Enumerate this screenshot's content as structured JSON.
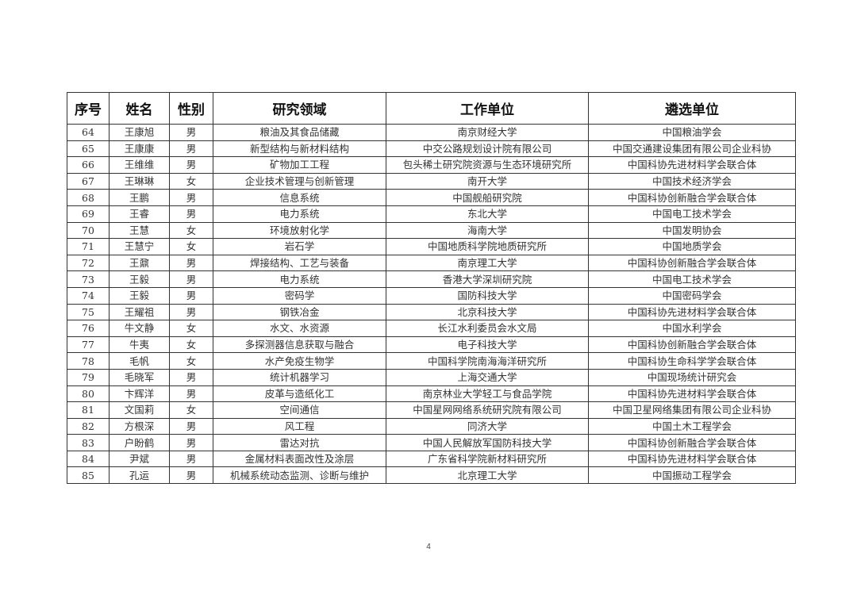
{
  "table": {
    "headers": [
      "序号",
      "姓名",
      "性别",
      "研究领域",
      "工作单位",
      "遴选单位"
    ],
    "rows": [
      [
        "64",
        "王康旭",
        "男",
        "粮油及其食品储藏",
        "南京财经大学",
        "中国粮油学会"
      ],
      [
        "65",
        "王康康",
        "男",
        "新型结构与新材料结构",
        "中交公路规划设计院有限公司",
        "中国交通建设集团有限公司企业科协"
      ],
      [
        "66",
        "王维维",
        "男",
        "矿物加工工程",
        "包头稀土研究院资源与生态环境研究所",
        "中国科协先进材料学会联合体"
      ],
      [
        "67",
        "王琳琳",
        "女",
        "企业技术管理与创新管理",
        "南开大学",
        "中国技术经济学会"
      ],
      [
        "68",
        "王鹏",
        "男",
        "信息系统",
        "中国舰船研究院",
        "中国科协创新融合学会联合体"
      ],
      [
        "69",
        "王睿",
        "男",
        "电力系统",
        "东北大学",
        "中国电工技术学会"
      ],
      [
        "70",
        "王慧",
        "女",
        "环境放射化学",
        "海南大学",
        "中国发明协会"
      ],
      [
        "71",
        "王慧宁",
        "女",
        "岩石学",
        "中国地质科学院地质研究所",
        "中国地质学会"
      ],
      [
        "72",
        "王鼐",
        "男",
        "焊接结构、工艺与装备",
        "南京理工大学",
        "中国科协创新融合学会联合体"
      ],
      [
        "73",
        "王毅",
        "男",
        "电力系统",
        "香港大学深圳研究院",
        "中国电工技术学会"
      ],
      [
        "74",
        "王毅",
        "男",
        "密码学",
        "国防科技大学",
        "中国密码学会"
      ],
      [
        "75",
        "王耀祖",
        "男",
        "钢铁冶金",
        "北京科技大学",
        "中国科协先进材料学会联合体"
      ],
      [
        "76",
        "牛文静",
        "女",
        "水文、水资源",
        "长江水利委员会水文局",
        "中国水利学会"
      ],
      [
        "77",
        "牛夷",
        "女",
        "多探测器信息获取与融合",
        "电子科技大学",
        "中国科协创新融合学会联合体"
      ],
      [
        "78",
        "毛帆",
        "女",
        "水产免疫生物学",
        "中国科学院南海海洋研究所",
        "中国科协生命科学学会联合体"
      ],
      [
        "79",
        "毛晓军",
        "男",
        "统计机器学习",
        "上海交通大学",
        "中国现场统计研究会"
      ],
      [
        "80",
        "卞辉洋",
        "男",
        "皮革与造纸化工",
        "南京林业大学轻工与食品学院",
        "中国科协先进材料学会联合体"
      ],
      [
        "81",
        "文国莉",
        "女",
        "空间通信",
        "中国星网网络系统研究院有限公司",
        "中国卫星网络集团有限公司企业科协"
      ],
      [
        "82",
        "方根深",
        "男",
        "风工程",
        "同济大学",
        "中国土木工程学会"
      ],
      [
        "83",
        "户盼鹤",
        "男",
        "雷达对抗",
        "中国人民解放军国防科技大学",
        "中国科协创新融合学会联合体"
      ],
      [
        "84",
        "尹斌",
        "男",
        "金属材料表面改性及涂层",
        "广东省科学院新材料研究所",
        "中国科协先进材料学会联合体"
      ],
      [
        "85",
        "孔运",
        "男",
        "机械系统动态监测、诊断与维护",
        "北京理工大学",
        "中国振动工程学会"
      ]
    ]
  },
  "page_number": "4"
}
